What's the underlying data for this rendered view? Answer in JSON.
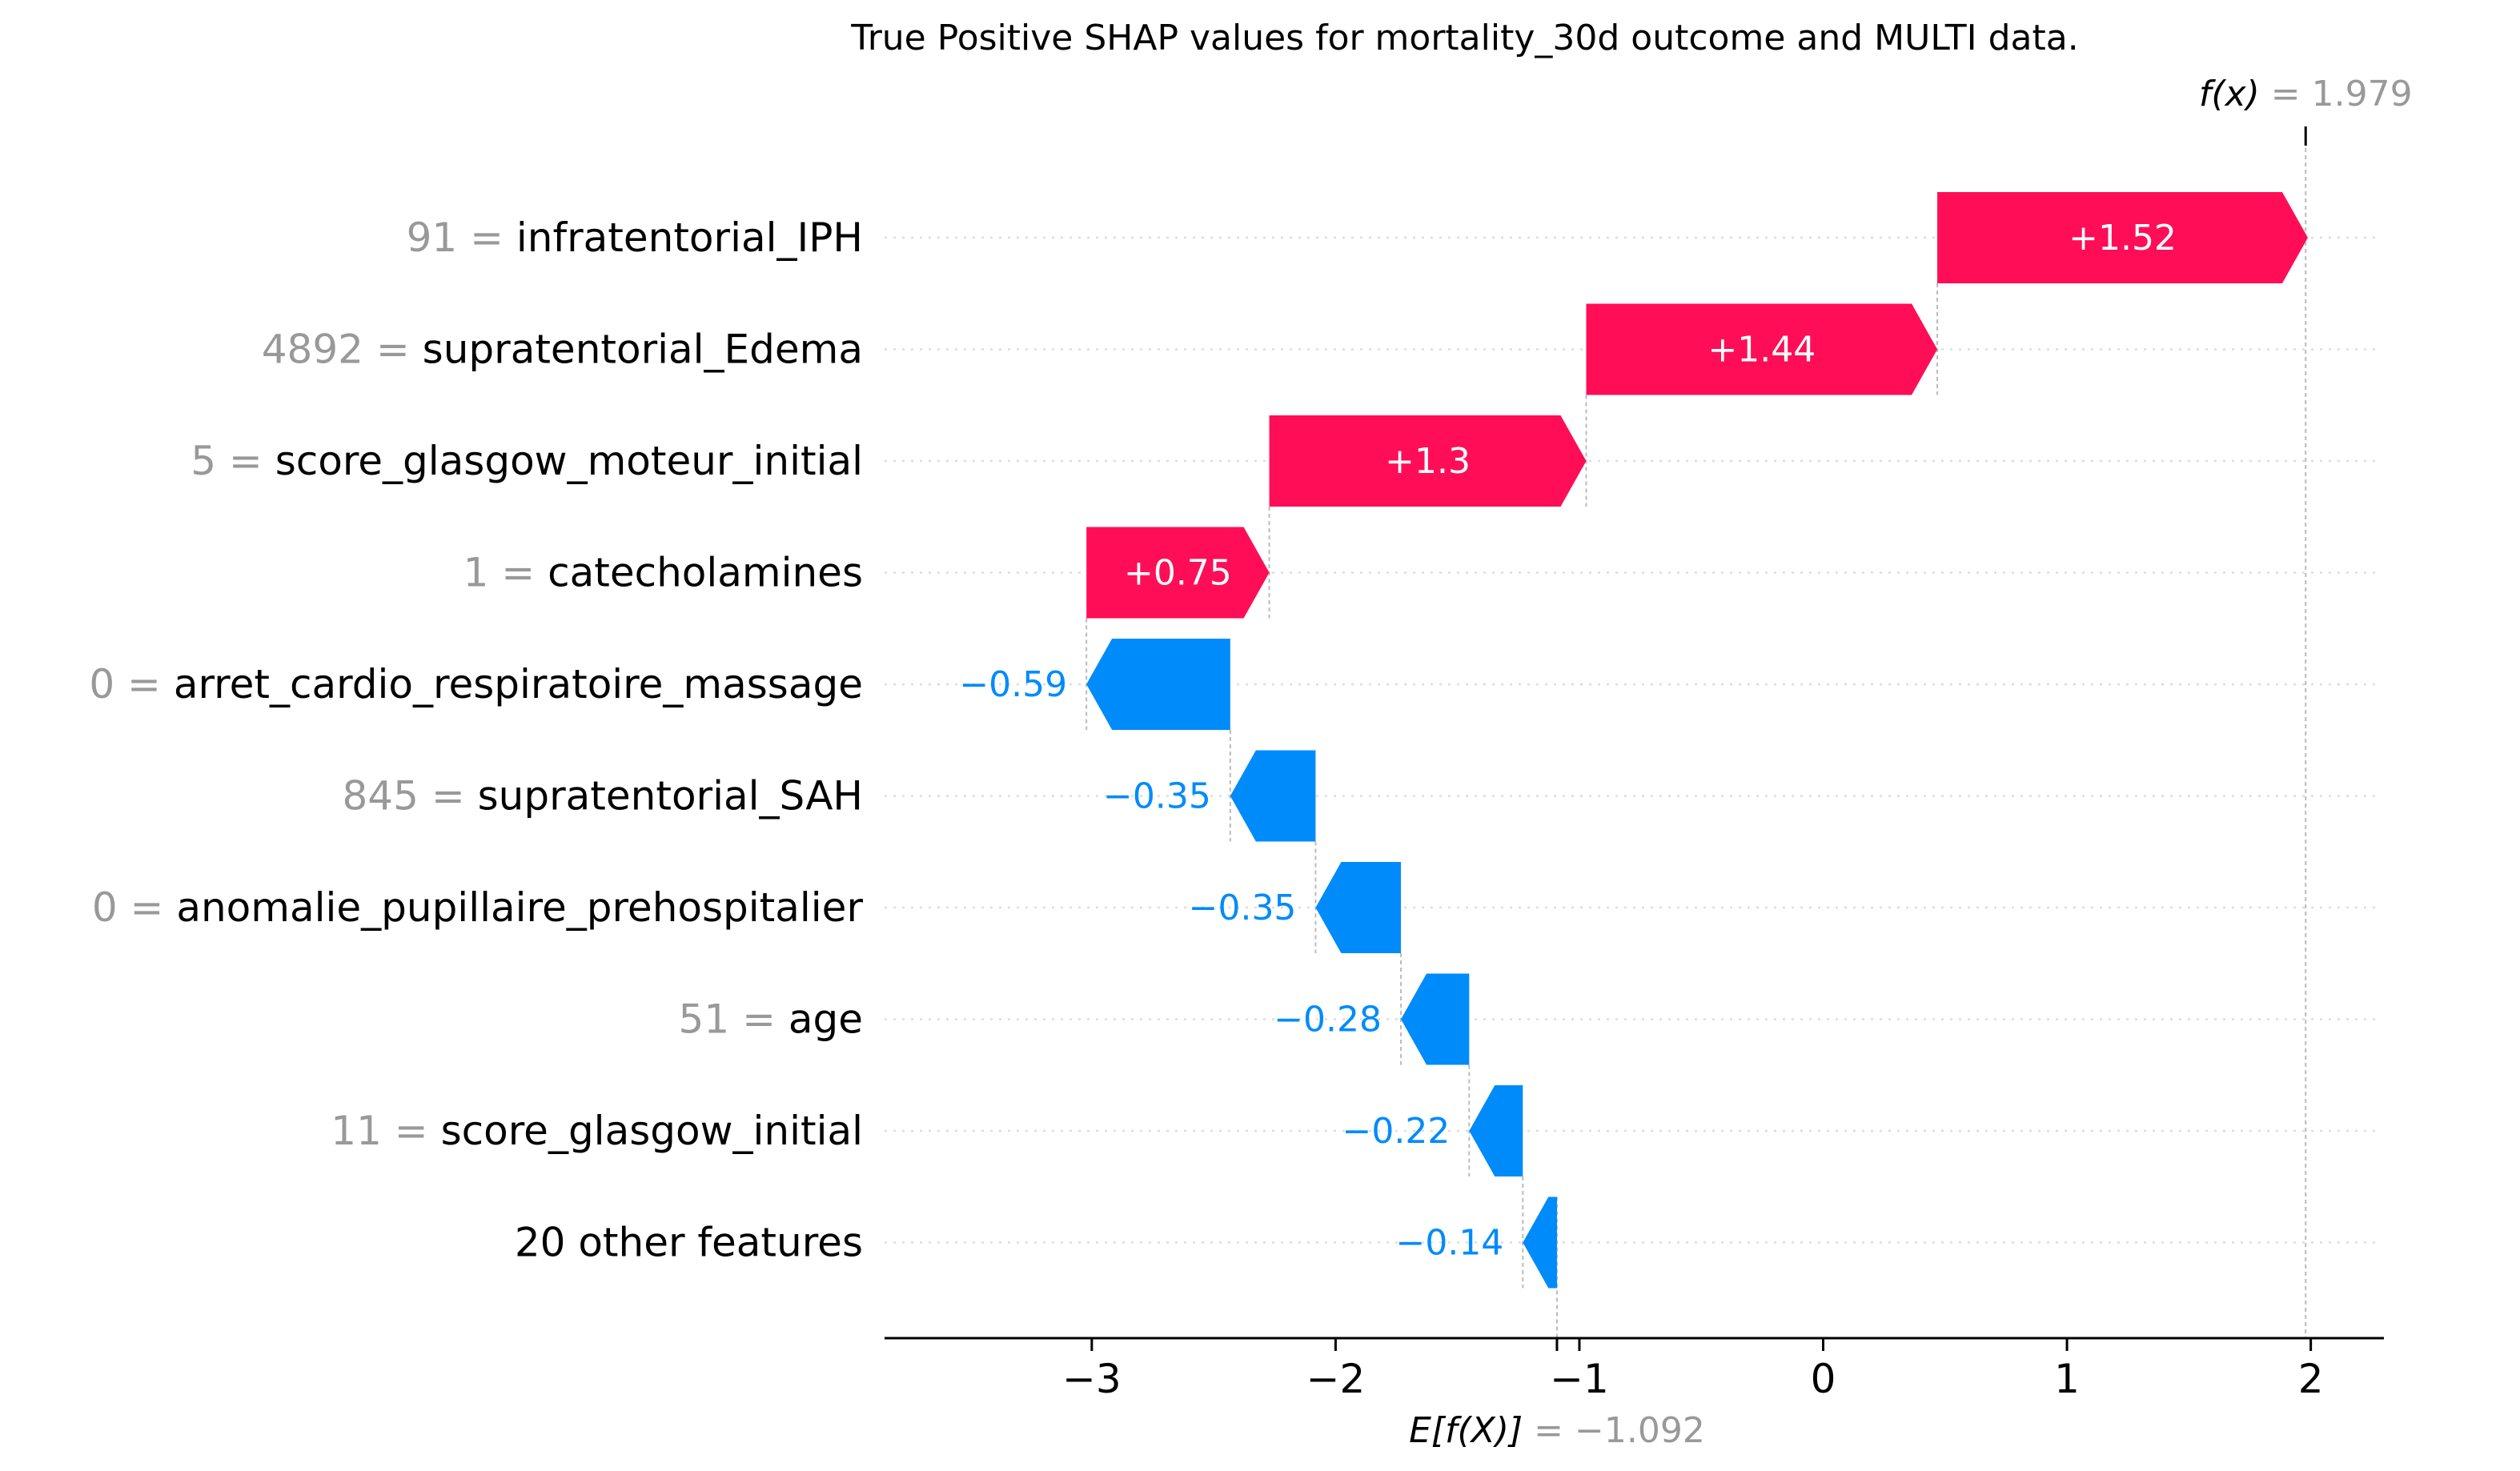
{
  "chart_data": {
    "type": "waterfall",
    "title": "True Positive SHAP values for mortality_30d outcome and MULTI data.",
    "fx": {
      "label_prefix": "f(x)",
      "value": 1.979,
      "value_text": "= 1.979"
    },
    "base": {
      "label_prefix": "E[f(X)]",
      "value": -1.092,
      "value_text": "= −1.092"
    },
    "xlim": [
      -3.85,
      2.3
    ],
    "xticks": [
      -3,
      -2,
      -1,
      0,
      1,
      2
    ],
    "xtick_labels": [
      "−3",
      "−2",
      "−1",
      "0",
      "1",
      "2"
    ],
    "features": [
      {
        "value": "91",
        "name": "infratentorial_IPH",
        "shap": 1.52,
        "label": "+1.52"
      },
      {
        "value": "4892",
        "name": "supratentorial_Edema",
        "shap": 1.44,
        "label": "+1.44"
      },
      {
        "value": "5",
        "name": "score_glasgow_moteur_initial",
        "shap": 1.3,
        "label": "+1.3"
      },
      {
        "value": "1",
        "name": "catecholamines",
        "shap": 0.75,
        "label": "+0.75"
      },
      {
        "value": "0",
        "name": "arret_cardio_respiratoire_massage",
        "shap": -0.59,
        "label": "−0.59"
      },
      {
        "value": "845",
        "name": "supratentorial_SAH",
        "shap": -0.35,
        "label": "−0.35"
      },
      {
        "value": "0",
        "name": "anomalie_pupillaire_prehospitalier",
        "shap": -0.35,
        "label": "−0.35"
      },
      {
        "value": "51",
        "name": "age",
        "shap": -0.28,
        "label": "−0.28"
      },
      {
        "value": "11",
        "name": "score_glasgow_initial",
        "shap": -0.22,
        "label": "−0.22"
      },
      {
        "value": "",
        "name": "20 other features",
        "shap": -0.14,
        "label": "−0.14"
      }
    ],
    "colors": {
      "positive": "#ff0d57",
      "negative": "#008bfb",
      "value_gray": "#999999",
      "text": "#000000",
      "gridline": "#dddddd",
      "connector": "#bbbbbb"
    }
  }
}
